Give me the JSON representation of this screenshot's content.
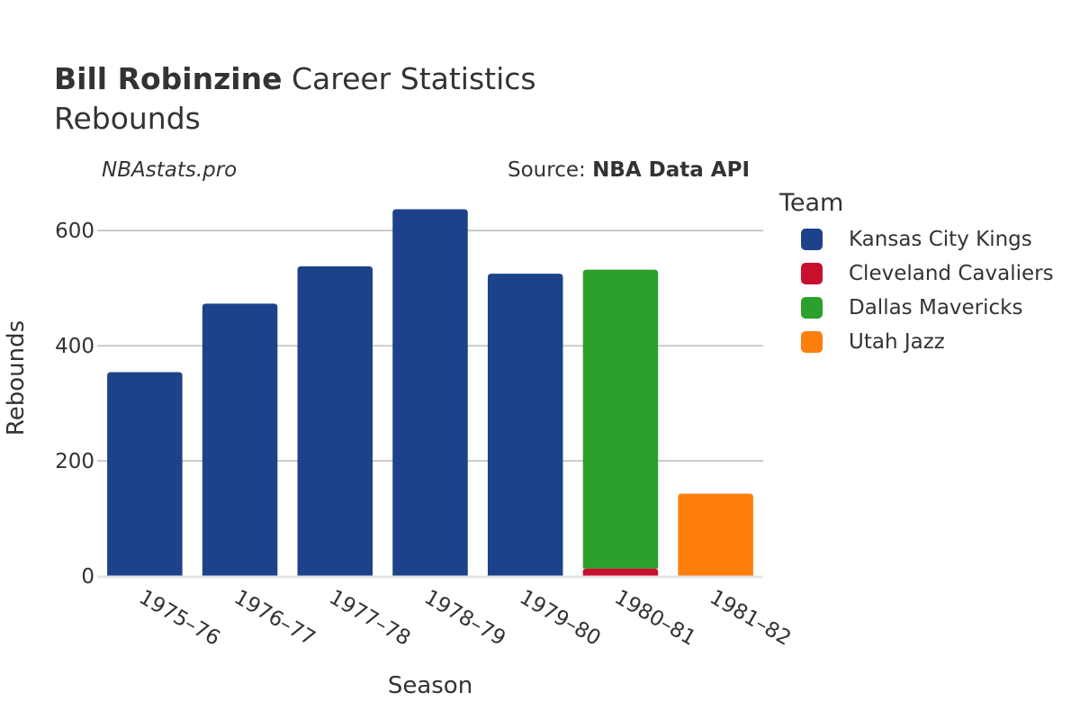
{
  "header": {
    "title_bold": "Bill Robinzine",
    "title_rest": " Career Statistics",
    "subtitle": "Rebounds",
    "watermark": "NBAstats.pro",
    "source_prefix": "Source: ",
    "source_name": "NBA Data API"
  },
  "legend": {
    "title": "Team",
    "items": [
      {
        "label": "Kansas City Kings",
        "color": "#1d428a"
      },
      {
        "label": "Cleveland Cavaliers",
        "color": "#c8102e"
      },
      {
        "label": "Dallas Mavericks",
        "color": "#2ca02c"
      },
      {
        "label": "Utah Jazz",
        "color": "#ff7f0e"
      }
    ]
  },
  "chart_data": {
    "type": "bar",
    "stacked": true,
    "xlabel": "Season",
    "ylabel": "Rebounds",
    "ylim": [
      0,
      680
    ],
    "yticks": [
      0,
      200,
      400,
      600
    ],
    "grid": true,
    "legend_position": "right",
    "categories": [
      "1975–76",
      "1976–77",
      "1977–78",
      "1978–79",
      "1979–80",
      "1980–81",
      "1981–82"
    ],
    "series": [
      {
        "name": "Kansas City Kings",
        "color": "#1d428a",
        "values": [
          354,
          473,
          538,
          637,
          525,
          0,
          0
        ]
      },
      {
        "name": "Cleveland Cavaliers",
        "color": "#c8102e",
        "values": [
          0,
          0,
          0,
          0,
          0,
          13,
          0
        ]
      },
      {
        "name": "Dallas Mavericks",
        "color": "#2ca02c",
        "values": [
          0,
          0,
          0,
          0,
          0,
          519,
          0
        ]
      },
      {
        "name": "Utah Jazz",
        "color": "#ff7f0e",
        "values": [
          0,
          0,
          0,
          0,
          0,
          0,
          143
        ]
      }
    ]
  }
}
